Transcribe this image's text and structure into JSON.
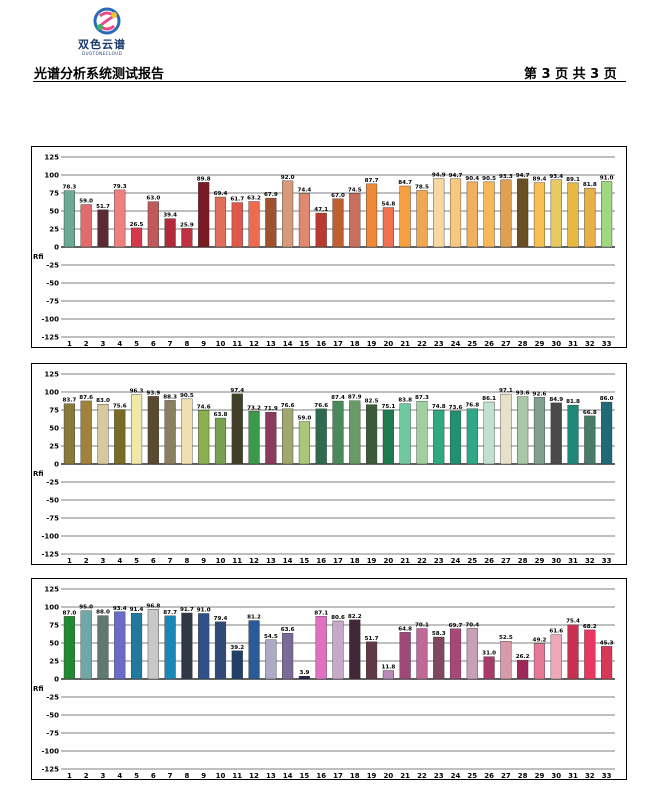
{
  "header": {
    "logo_text": "双色云谱",
    "logo_subtext": "DUOTONECLOUD",
    "title": "光谱分析系统测试报告",
    "page_info": "第 3 页 共 3 页"
  },
  "chart_data": [
    {
      "type": "bar",
      "ylabel": "Rfi",
      "ylim": [
        -125,
        125
      ],
      "yticks": [
        125,
        100,
        75,
        50,
        25,
        0,
        -25,
        -50,
        -75,
        -100,
        -125
      ],
      "grid": "horizontal",
      "categories": [
        "1",
        "2",
        "3",
        "4",
        "5",
        "6",
        "7",
        "8",
        "9",
        "10",
        "11",
        "12",
        "13",
        "14",
        "15",
        "16",
        "17",
        "18",
        "19",
        "20",
        "21",
        "22",
        "23",
        "24",
        "25",
        "26",
        "27",
        "28",
        "29",
        "30",
        "31",
        "32",
        "33"
      ],
      "values": [
        78.3,
        59.0,
        51.7,
        79.3,
        26.5,
        63.0,
        39.4,
        25.9,
        89.8,
        69.4,
        61.7,
        63.2,
        67.9,
        92.0,
        74.4,
        47.1,
        67.0,
        74.5,
        87.7,
        54.8,
        84.7,
        78.5,
        94.9,
        94.7,
        90.4,
        90.5,
        93.3,
        94.7,
        89.4,
        93.4,
        89.1,
        81.8,
        91.0
      ],
      "labels": [
        "78.3",
        "59.0",
        "51.7",
        "79.3",
        "26.5",
        "63.0",
        "39.4",
        "25.9",
        "89.8",
        "69.4",
        "61.7",
        "63.2",
        "67.9",
        "92.0",
        "74.4",
        "47.1",
        "67.0",
        "74.5",
        "87.7",
        "54.8",
        "84.7",
        "78.5",
        "94.9",
        "94.7",
        "90.4",
        "90.5",
        "93.3",
        "94.7",
        "89.4",
        "93.4",
        "89.1",
        "81.8",
        "91.0"
      ],
      "colors": [
        "#6aaa96",
        "#e26a6a",
        "#5e2a32",
        "#f08080",
        "#d63a4a",
        "#c05a5a",
        "#b22a3a",
        "#c03040",
        "#7a1a22",
        "#e06e5a",
        "#e05848",
        "#f06a50",
        "#a0522d",
        "#d69a7a",
        "#e08870",
        "#b83a30",
        "#c06030",
        "#c87060",
        "#f08838",
        "#f07050",
        "#f4a040",
        "#f0a850",
        "#f8d8a0",
        "#f8c880",
        "#f0b060",
        "#f8b858",
        "#e0a050",
        "#6a5020",
        "#f8c050",
        "#e8c860",
        "#e8b840",
        "#e8b048",
        "#a0d880"
      ]
    },
    {
      "type": "bar",
      "ylabel": "Rfi",
      "ylim": [
        -125,
        125
      ],
      "yticks": [
        125,
        100,
        75,
        50,
        25,
        0,
        -25,
        -50,
        -75,
        -100,
        -125
      ],
      "grid": "horizontal",
      "categories": [
        "1",
        "2",
        "3",
        "4",
        "5",
        "6",
        "7",
        "8",
        "9",
        "10",
        "11",
        "12",
        "13",
        "14",
        "15",
        "16",
        "17",
        "18",
        "19",
        "20",
        "21",
        "22",
        "23",
        "24",
        "25",
        "26",
        "27",
        "28",
        "29",
        "30",
        "31",
        "32",
        "33"
      ],
      "values": [
        83.7,
        87.6,
        83.0,
        75.6,
        96.3,
        93.9,
        88.3,
        90.5,
        74.6,
        63.8,
        97.4,
        73.2,
        71.9,
        76.6,
        59.0,
        76.6,
        87.4,
        87.9,
        82.5,
        75.1,
        83.8,
        87.3,
        74.8,
        73.6,
        76.8,
        86.1,
        97.1,
        93.6,
        92.6,
        84.9,
        81.8,
        66.8,
        86.0
      ],
      "labels": [
        "83.7",
        "87.6",
        "83.0",
        "75.6",
        "96.3",
        "93.9",
        "88.3",
        "90.5",
        "74.6",
        "63.8",
        "97.4",
        "73.2",
        "71.9",
        "76.6",
        "59.0",
        "76.6",
        "87.4",
        "87.9",
        "82.5",
        "75.1",
        "83.8",
        "87.3",
        "74.8",
        "73.6",
        "76.8",
        "86.1",
        "97.1",
        "93.6",
        "92.6",
        "84.9",
        "81.8",
        "66.8",
        "86.0"
      ],
      "colors": [
        "#8a7a3a",
        "#a0823a",
        "#d8c8a0",
        "#7a6a28",
        "#f0e8a8",
        "#5a4a30",
        "#8a8060",
        "#f0e0b0",
        "#8ab050",
        "#78a050",
        "#404028",
        "#3a9a4a",
        "#8a3a5a",
        "#a0a870",
        "#a8c878",
        "#306a50",
        "#4a8a5a",
        "#6a9a68",
        "#3a5a3a",
        "#207a50",
        "#70c8a0",
        "#a0d0a0",
        "#30a880",
        "#209070",
        "#30a888",
        "#c0e0d0",
        "#e8e0c8",
        "#a8c8a8",
        "#80a090",
        "#4a4a48",
        "#208878",
        "#4a7a68",
        "#206a78"
      ]
    },
    {
      "type": "bar",
      "ylabel": "Rfi",
      "ylim": [
        -125,
        125
      ],
      "yticks": [
        125,
        100,
        75,
        50,
        25,
        0,
        -25,
        -50,
        -75,
        -100,
        -125
      ],
      "grid": "horizontal",
      "categories": [
        "1",
        "2",
        "3",
        "4",
        "5",
        "6",
        "7",
        "8",
        "9",
        "10",
        "11",
        "12",
        "13",
        "14",
        "15",
        "16",
        "17",
        "18",
        "19",
        "20",
        "21",
        "22",
        "23",
        "24",
        "25",
        "26",
        "27",
        "28",
        "29",
        "30",
        "31",
        "32",
        "33"
      ],
      "values": [
        87.0,
        95.0,
        88.0,
        93.4,
        91.4,
        96.8,
        87.7,
        91.7,
        91.0,
        79.4,
        39.2,
        81.2,
        54.5,
        63.6,
        3.9,
        87.1,
        80.6,
        82.2,
        51.7,
        11.8,
        64.8,
        70.1,
        58.3,
        69.7,
        70.4,
        31.0,
        52.5,
        26.2,
        49.2,
        61.6,
        75.4,
        68.2,
        45.3
      ],
      "labels": [
        "87.0",
        "95.0",
        "88.0",
        "93.4",
        "91.4",
        "96.8",
        "87.7",
        "91.7",
        "91.0",
        "79.4",
        "39.2",
        "81.2",
        "54.5",
        "63.6",
        "3.9",
        "87.1",
        "80.6",
        "82.2",
        "51.7",
        "11.8",
        "64.8",
        "70.1",
        "58.3",
        "69.7",
        "70.4",
        "31.0",
        "52.5",
        "26.2",
        "49.2",
        "61.6",
        "75.4",
        "68.2",
        "45.3"
      ],
      "colors": [
        "#208a30",
        "#70a8a8",
        "#607870",
        "#6a6ac8",
        "#207aa0",
        "#c8c8c8",
        "#1888b8",
        "#303848",
        "#30508a",
        "#304a78",
        "#20406a",
        "#2a5a98",
        "#b0a8c8",
        "#7a6a98",
        "#202048",
        "#e070c0",
        "#c8a8c8",
        "#402838",
        "#603848",
        "#b888b8",
        "#a04878",
        "#c06898",
        "#804860",
        "#a84878",
        "#c8a0b8",
        "#a83a6a",
        "#d89aa8",
        "#a02858",
        "#e87898",
        "#f0a8b8",
        "#c83050",
        "#e83860",
        "#d83858"
      ]
    }
  ]
}
